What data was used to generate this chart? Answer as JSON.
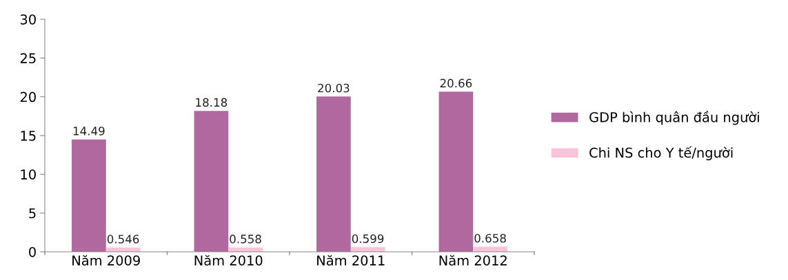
{
  "chart_data": {
    "type": "bar",
    "categories": [
      "Năm 2009",
      "Năm 2010",
      "Năm 2011",
      "Năm 2012"
    ],
    "series": [
      {
        "name": "GDP bình quân đầu người",
        "color": "#b0689f",
        "values": [
          14.49,
          18.18,
          20.03,
          20.66
        ]
      },
      {
        "name": "Chi NS cho Y tế/người",
        "color": "#f9c3d9",
        "values": [
          0.546,
          0.558,
          0.599,
          0.658
        ]
      }
    ],
    "ylim": [
      0,
      30
    ],
    "yticks": [
      0,
      5,
      10,
      15,
      20,
      25,
      30
    ],
    "data_labels": true,
    "grid": false,
    "legend": "right"
  }
}
